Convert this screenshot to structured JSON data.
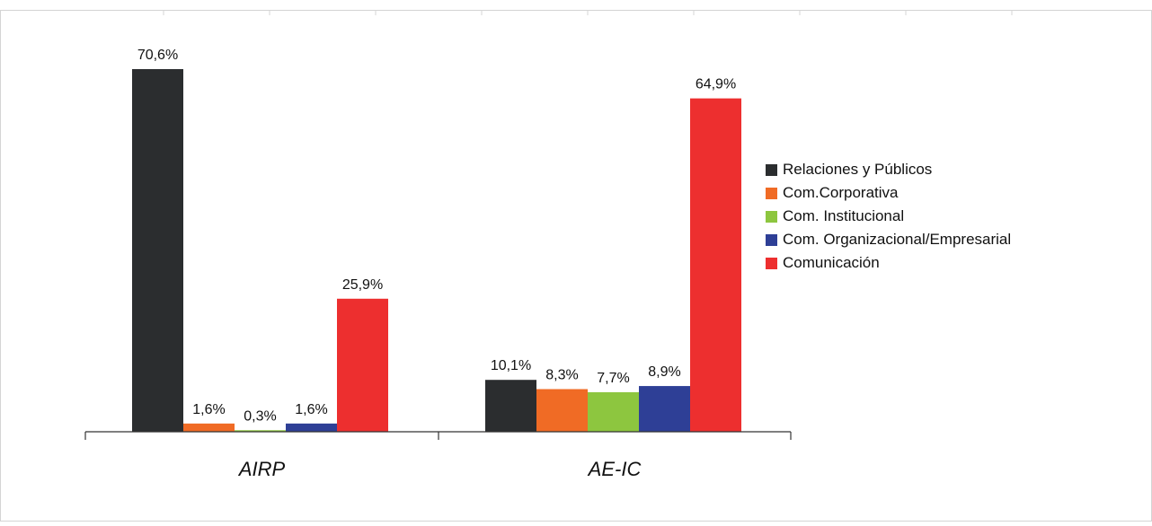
{
  "chart_data": {
    "type": "bar",
    "categories": [
      "AIRP",
      "AE-IC"
    ],
    "series": [
      {
        "name": "Relaciones y Públicos",
        "color": "#2b2d2f",
        "values": [
          70.6,
          10.1
        ],
        "labels": [
          "70,6%",
          "10,1%"
        ]
      },
      {
        "name": "Com.Corporativa",
        "color": "#f06b25",
        "values": [
          1.6,
          8.3
        ],
        "labels": [
          "1,6%",
          "8,3%"
        ]
      },
      {
        "name": "Com. Institucional",
        "color": "#8dc63f",
        "values": [
          0.3,
          7.7
        ],
        "labels": [
          "0,3%",
          "7,7%"
        ]
      },
      {
        "name": "Com. Organizacional/Empresarial",
        "color": "#2e3f96",
        "values": [
          1.6,
          8.9
        ],
        "labels": [
          "1,6%",
          "8,9%"
        ]
      },
      {
        "name": "Comunicación",
        "color": "#ed2f2f",
        "values": [
          25.9,
          64.9
        ],
        "labels": [
          "25,9%",
          "64,9%"
        ]
      }
    ],
    "ylim": [
      0,
      70.6
    ],
    "legend_position": "right",
    "grid": false
  }
}
